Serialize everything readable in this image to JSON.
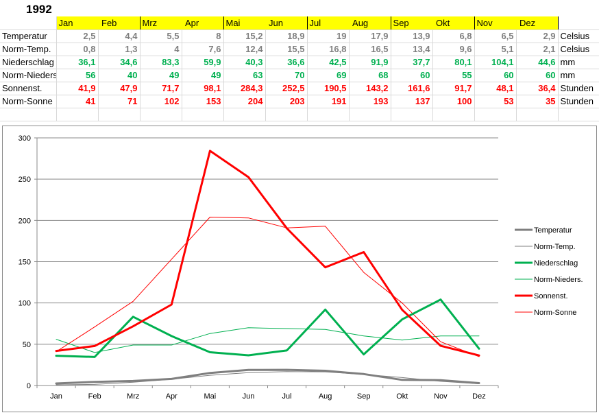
{
  "year": "1992",
  "months": [
    "Jan",
    "Feb",
    "Mrz",
    "Apr",
    "Mai",
    "Jun",
    "Jul",
    "Aug",
    "Sep",
    "Okt",
    "Nov",
    "Dez"
  ],
  "rows": [
    {
      "label": "Temperatur",
      "unit": "Celsius",
      "color": "#7f7f7f",
      "values": [
        "2,5",
        "4,4",
        "5,5",
        "8",
        "15,2",
        "18,9",
        "19",
        "17,9",
        "13,9",
        "6,8",
        "6,5",
        "2,9"
      ]
    },
    {
      "label": "Norm-Temp.",
      "unit": "Celsius",
      "color": "#7f7f7f",
      "values": [
        "0,8",
        "1,3",
        "4",
        "7,6",
        "12,4",
        "15,5",
        "16,8",
        "16,5",
        "13,4",
        "9,6",
        "5,1",
        "2,1"
      ]
    },
    {
      "label": "Niederschlag",
      "unit": "mm",
      "color": "#00b050",
      "values": [
        "36,1",
        "34,6",
        "83,3",
        "59,9",
        "40,3",
        "36,6",
        "42,5",
        "91,9",
        "37,7",
        "80,1",
        "104,1",
        "44,6"
      ]
    },
    {
      "label": "Norm-Nieders.",
      "unit": "mm",
      "color": "#00b050",
      "values": [
        "56",
        "40",
        "49",
        "49",
        "63",
        "70",
        "69",
        "68",
        "60",
        "55",
        "60",
        "60"
      ]
    },
    {
      "label": "Sonnenst.",
      "unit": "Stunden",
      "color": "#ff0000",
      "values": [
        "41,9",
        "47,9",
        "71,7",
        "98,1",
        "284,3",
        "252,5",
        "190,5",
        "143,2",
        "161,6",
        "91,7",
        "48,1",
        "36,4"
      ]
    },
    {
      "label": "Norm-Sonne",
      "unit": "Stunden",
      "color": "#ff0000",
      "values": [
        "41",
        "71",
        "102",
        "153",
        "204",
        "203",
        "191",
        "193",
        "137",
        "100",
        "53",
        "35"
      ]
    }
  ],
  "chart_data": {
    "type": "line",
    "categories": [
      "Jan",
      "Feb",
      "Mrz",
      "Apr",
      "Mai",
      "Jun",
      "Jul",
      "Aug",
      "Sep",
      "Okt",
      "Nov",
      "Dez"
    ],
    "ylim": [
      0,
      300
    ],
    "yticks": [
      0,
      50,
      100,
      150,
      200,
      250,
      300
    ],
    "grid": true,
    "legend_position": "right",
    "series": [
      {
        "name": "Temperatur",
        "color": "#7f7f7f",
        "style": "thick",
        "values": [
          2.5,
          4.4,
          5.5,
          8,
          15.2,
          18.9,
          19,
          17.9,
          13.9,
          6.8,
          6.5,
          2.9
        ]
      },
      {
        "name": "Norm-Temp.",
        "color": "#7f7f7f",
        "style": "thin",
        "values": [
          0.8,
          1.3,
          4,
          7.6,
          12.4,
          15.5,
          16.8,
          16.5,
          13.4,
          9.6,
          5.1,
          2.1
        ]
      },
      {
        "name": "Niederschlag",
        "color": "#00b050",
        "style": "thick",
        "values": [
          36.1,
          34.6,
          83.3,
          59.9,
          40.3,
          36.6,
          42.5,
          91.9,
          37.7,
          80.1,
          104.1,
          44.6
        ]
      },
      {
        "name": "Norm-Nieders.",
        "color": "#00b050",
        "style": "thin",
        "values": [
          56,
          40,
          49,
          49,
          63,
          70,
          69,
          68,
          60,
          55,
          60,
          60
        ]
      },
      {
        "name": "Sonnenst.",
        "color": "#ff0000",
        "style": "thick",
        "values": [
          41.9,
          47.9,
          71.7,
          98.1,
          284.3,
          252.5,
          190.5,
          143.2,
          161.6,
          91.7,
          48.1,
          36.4
        ]
      },
      {
        "name": "Norm-Sonne",
        "color": "#ff0000",
        "style": "thin",
        "values": [
          41,
          71,
          102,
          153,
          204,
          203,
          191,
          193,
          137,
          100,
          53,
          35
        ]
      }
    ]
  }
}
